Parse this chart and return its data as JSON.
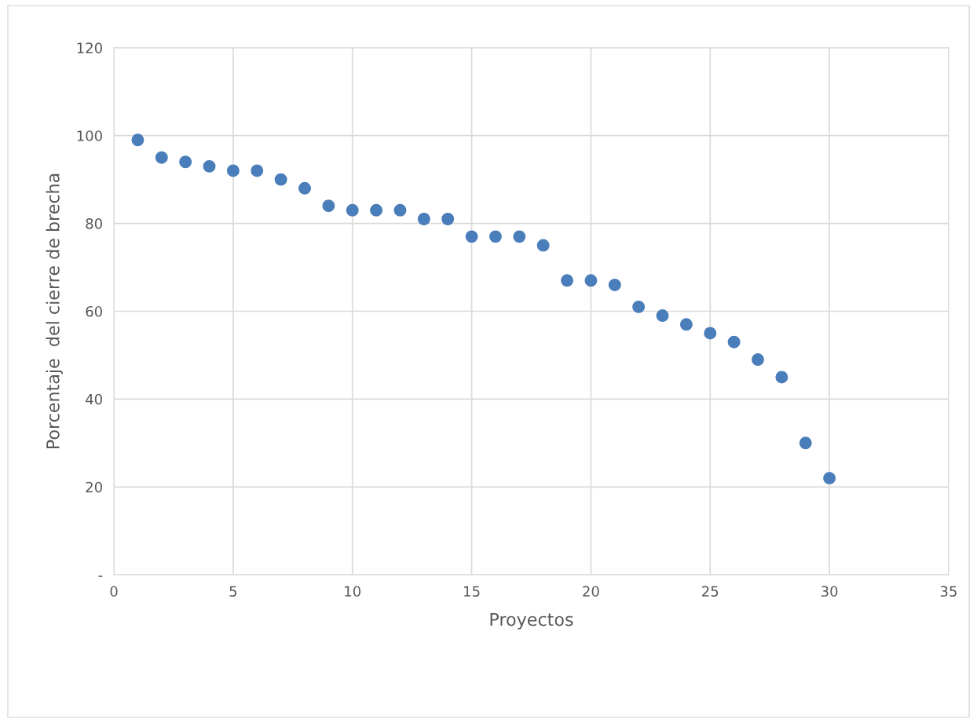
{
  "chart_data": {
    "type": "scatter",
    "xlabel": "Proyectos",
    "ylabel": "Porcentaje  del cierre de brecha",
    "x": [
      1,
      2,
      3,
      4,
      5,
      6,
      7,
      8,
      9,
      10,
      11,
      12,
      13,
      14,
      15,
      16,
      17,
      18,
      19,
      20,
      21,
      22,
      23,
      24,
      25,
      26,
      27,
      28,
      29,
      30
    ],
    "series": [
      {
        "color": "#4a7ebb",
        "values": [
          99,
          95,
          94,
          93,
          92,
          92,
          90,
          88,
          84,
          83,
          83,
          83,
          81,
          81,
          77,
          77,
          77,
          75,
          67,
          67,
          66,
          61,
          59,
          57,
          55,
          53,
          49,
          45,
          30,
          22
        ]
      }
    ],
    "xlim": [
      0,
      35
    ],
    "xticks": [
      0,
      5,
      10,
      15,
      20,
      25,
      30,
      35
    ],
    "ylim": [
      0,
      120
    ],
    "yticks": [
      {
        "value": 0,
        "label": "-"
      },
      20,
      40,
      60,
      80,
      100,
      120
    ],
    "grid": true,
    "marker": "circle",
    "legend": false
  }
}
